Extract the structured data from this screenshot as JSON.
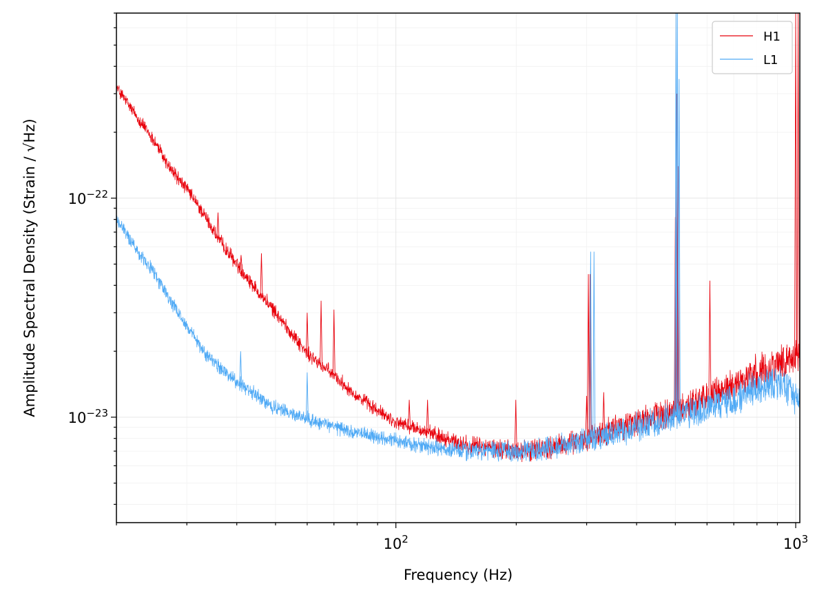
{
  "chart_data": {
    "type": "line",
    "title": "",
    "xlabel": "Frequency (Hz)",
    "ylabel": "Amplitude Spectral Density (Strain / √Hz)",
    "xscale": "log",
    "yscale": "log",
    "xlim": [
      20,
      1024
    ],
    "ylim": [
      3.3e-24,
      7e-22
    ],
    "grid": true,
    "legend_position": "top-right",
    "x_ticks": [
      {
        "base": "10",
        "exp": "2"
      },
      {
        "base": "10",
        "exp": "3"
      }
    ],
    "y_ticks": [
      {
        "base": "10",
        "exp": "−22"
      },
      {
        "base": "10",
        "exp": "−23"
      }
    ],
    "series": [
      {
        "name": "H1",
        "color": "#e8000b",
        "baseline": [
          [
            20,
            3.2e-22
          ],
          [
            22,
            2.5e-22
          ],
          [
            25,
            1.8e-22
          ],
          [
            27,
            1.4e-22
          ],
          [
            30,
            1.1e-22
          ],
          [
            33,
            8.5e-23
          ],
          [
            36,
            6.5e-23
          ],
          [
            40,
            5e-23
          ],
          [
            45,
            3.8e-23
          ],
          [
            50,
            3e-23
          ],
          [
            55,
            2.4e-23
          ],
          [
            60,
            1.95e-23
          ],
          [
            70,
            1.55e-23
          ],
          [
            80,
            1.25e-23
          ],
          [
            90,
            1.07e-23
          ],
          [
            100,
            9.5e-24
          ],
          [
            120,
            8.5e-24
          ],
          [
            150,
            7.5e-24
          ],
          [
            200,
            7e-24
          ],
          [
            250,
            7.3e-24
          ],
          [
            300,
            8e-24
          ],
          [
            400,
            9.5e-24
          ],
          [
            500,
            1.07e-23
          ],
          [
            600,
            1.22e-23
          ],
          [
            700,
            1.4e-23
          ],
          [
            800,
            1.6e-23
          ],
          [
            900,
            1.75e-23
          ],
          [
            1000,
            1.9e-23
          ]
        ],
        "peaks": [
          [
            35.9,
            8.6e-23
          ],
          [
            41,
            5.5e-23
          ],
          [
            46.1,
            5.6e-23
          ],
          [
            60,
            3e-23
          ],
          [
            65,
            3.4e-23
          ],
          [
            70,
            3.1e-23
          ],
          [
            108,
            1.2e-23
          ],
          [
            120,
            1.2e-23
          ],
          [
            199.5,
            1.2e-23
          ],
          [
            300,
            1.25e-23
          ],
          [
            303,
            4.5e-23
          ],
          [
            306,
            4.5e-23
          ],
          [
            331,
            1.3e-23
          ],
          [
            500,
            8.2e-23
          ],
          [
            504,
            3e-22
          ],
          [
            508,
            1.4e-22
          ],
          [
            610,
            4.2e-23
          ],
          [
            1000,
            7e-22
          ],
          [
            1014,
            7e-22
          ]
        ]
      },
      {
        "name": "L1",
        "color": "#4ea9f5",
        "baseline": [
          [
            20,
            8e-23
          ],
          [
            22,
            6.2e-23
          ],
          [
            25,
            4.5e-23
          ],
          [
            27,
            3.5e-23
          ],
          [
            30,
            2.6e-23
          ],
          [
            33,
            2e-23
          ],
          [
            36,
            1.7e-23
          ],
          [
            40,
            1.45e-23
          ],
          [
            45,
            1.25e-23
          ],
          [
            50,
            1.1e-23
          ],
          [
            60,
            9.8e-24
          ],
          [
            70,
            9e-24
          ],
          [
            80,
            8.5e-24
          ],
          [
            100,
            7.8e-24
          ],
          [
            120,
            7.3e-24
          ],
          [
            150,
            7e-24
          ],
          [
            200,
            7e-24
          ],
          [
            250,
            7.3e-24
          ],
          [
            300,
            7.8e-24
          ],
          [
            400,
            9e-24
          ],
          [
            500,
            1e-23
          ],
          [
            600,
            1.1e-23
          ],
          [
            700,
            1.22e-23
          ],
          [
            800,
            1.35e-23
          ],
          [
            900,
            1.45e-23
          ],
          [
            950,
            1.38e-23
          ],
          [
            1024,
            1.15e-23
          ]
        ],
        "peaks": [
          [
            40.9,
            2e-23
          ],
          [
            60,
            1.6e-23
          ],
          [
            307,
            5.7e-23
          ],
          [
            313,
            5.7e-23
          ],
          [
            501,
            8e-23
          ],
          [
            502,
            7e-22
          ],
          [
            506,
            7e-22
          ],
          [
            511,
            3.5e-22
          ]
        ]
      }
    ]
  }
}
